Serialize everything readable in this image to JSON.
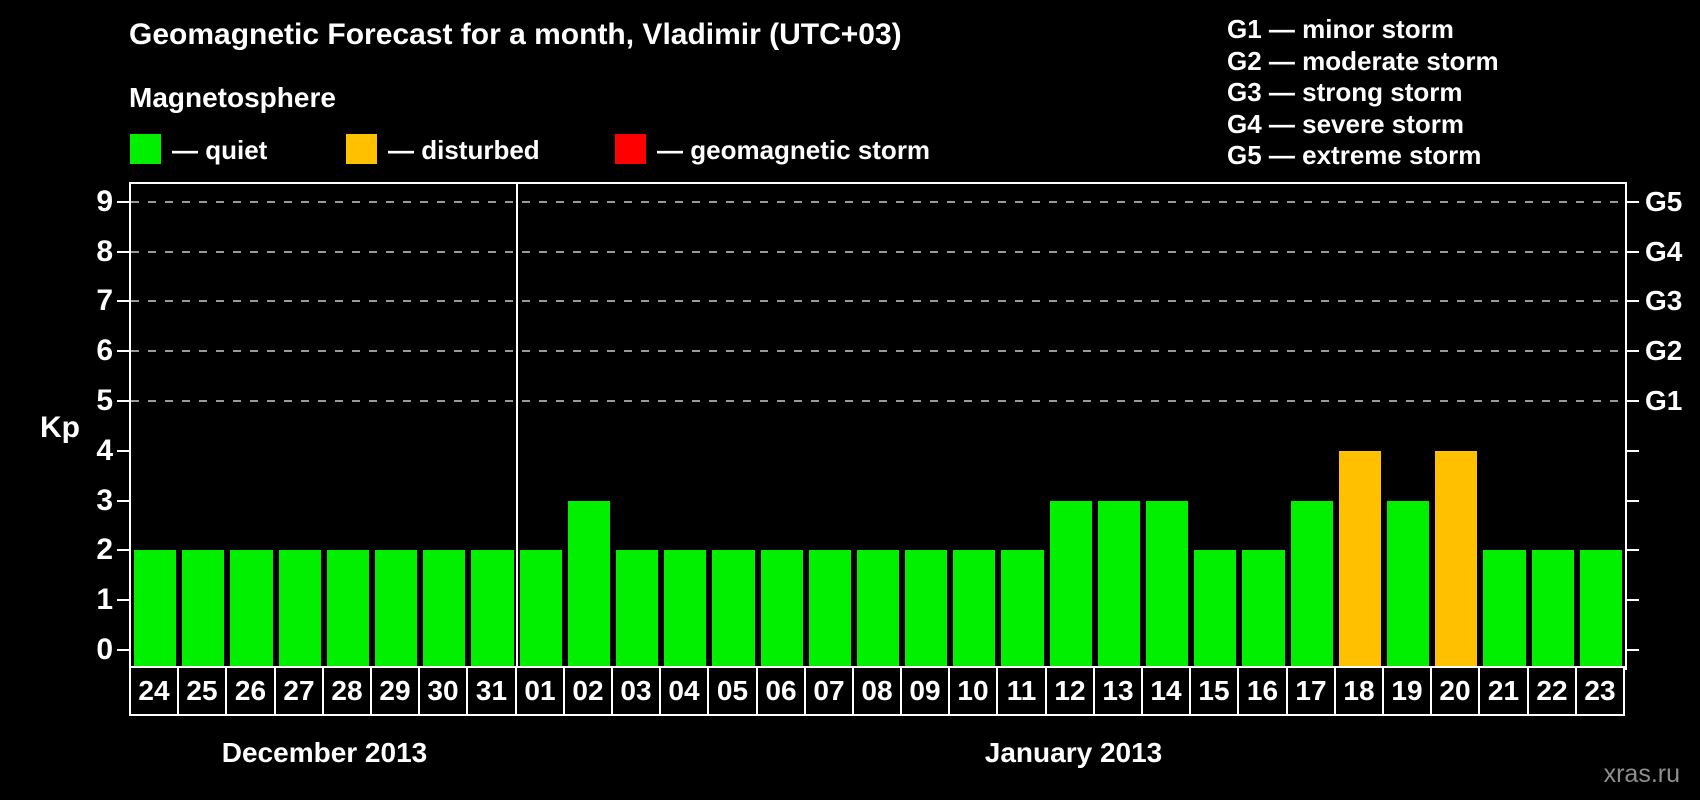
{
  "header": {
    "title": "Geomagnetic Forecast for a month, Vladimir (UTC+03)",
    "subtitle": "Magnetosphere",
    "legend": [
      {
        "state": "quiet",
        "label": "— quiet",
        "color": "#00F000"
      },
      {
        "state": "disturbed",
        "label": "— disturbed",
        "color": "#FFC000"
      },
      {
        "state": "storm",
        "label": "— geomagnetic storm",
        "color": "#FF0000"
      }
    ],
    "g_scale_legend": [
      "G1 — minor storm",
      "G2 — moderate storm",
      "G3 — strong storm",
      "G4 — severe storm",
      "G5 — extreme storm"
    ]
  },
  "watermark": "xras.ru",
  "chart_data": {
    "type": "bar",
    "title": "Geomagnetic Forecast for a month, Vladimir (UTC+03)",
    "ylabel": "Kp",
    "ylim": [
      0,
      9
    ],
    "y_ticks": [
      0,
      1,
      2,
      3,
      4,
      5,
      6,
      7,
      8,
      9
    ],
    "gridlines_at": [
      5,
      6,
      7,
      8,
      9
    ],
    "grid": "dashed, only at G-storm levels 5-9",
    "legend_position": "top",
    "right_axis_labels": [
      {
        "kp": 5,
        "label": "G1"
      },
      {
        "kp": 6,
        "label": "G2"
      },
      {
        "kp": 7,
        "label": "G3"
      },
      {
        "kp": 8,
        "label": "G4"
      },
      {
        "kp": 9,
        "label": "G5"
      }
    ],
    "months": [
      {
        "label": "December 2013",
        "days": 8
      },
      {
        "label": "January 2013",
        "days": 23
      }
    ],
    "colors_by_state": {
      "quiet": "#00F000",
      "disturbed": "#FFC000",
      "storm": "#FF0000"
    },
    "days": [
      {
        "day": "24",
        "kp": 2,
        "state": "quiet"
      },
      {
        "day": "25",
        "kp": 2,
        "state": "quiet"
      },
      {
        "day": "26",
        "kp": 2,
        "state": "quiet"
      },
      {
        "day": "27",
        "kp": 2,
        "state": "quiet"
      },
      {
        "day": "28",
        "kp": 2,
        "state": "quiet"
      },
      {
        "day": "29",
        "kp": 2,
        "state": "quiet"
      },
      {
        "day": "30",
        "kp": 2,
        "state": "quiet"
      },
      {
        "day": "31",
        "kp": 2,
        "state": "quiet"
      },
      {
        "day": "01",
        "kp": 2,
        "state": "quiet"
      },
      {
        "day": "02",
        "kp": 3,
        "state": "quiet"
      },
      {
        "day": "03",
        "kp": 2,
        "state": "quiet"
      },
      {
        "day": "04",
        "kp": 2,
        "state": "quiet"
      },
      {
        "day": "05",
        "kp": 2,
        "state": "quiet"
      },
      {
        "day": "06",
        "kp": 2,
        "state": "quiet"
      },
      {
        "day": "07",
        "kp": 2,
        "state": "quiet"
      },
      {
        "day": "08",
        "kp": 2,
        "state": "quiet"
      },
      {
        "day": "09",
        "kp": 2,
        "state": "quiet"
      },
      {
        "day": "10",
        "kp": 2,
        "state": "quiet"
      },
      {
        "day": "11",
        "kp": 2,
        "state": "quiet"
      },
      {
        "day": "12",
        "kp": 3,
        "state": "quiet"
      },
      {
        "day": "13",
        "kp": 3,
        "state": "quiet"
      },
      {
        "day": "14",
        "kp": 3,
        "state": "quiet"
      },
      {
        "day": "15",
        "kp": 2,
        "state": "quiet"
      },
      {
        "day": "16",
        "kp": 2,
        "state": "quiet"
      },
      {
        "day": "17",
        "kp": 3,
        "state": "quiet"
      },
      {
        "day": "18",
        "kp": 4,
        "state": "disturbed"
      },
      {
        "day": "19",
        "kp": 3,
        "state": "quiet"
      },
      {
        "day": "20",
        "kp": 4,
        "state": "disturbed"
      },
      {
        "day": "21",
        "kp": 2,
        "state": "quiet"
      },
      {
        "day": "22",
        "kp": 2,
        "state": "quiet"
      },
      {
        "day": "23",
        "kp": 2,
        "state": "quiet"
      }
    ]
  }
}
